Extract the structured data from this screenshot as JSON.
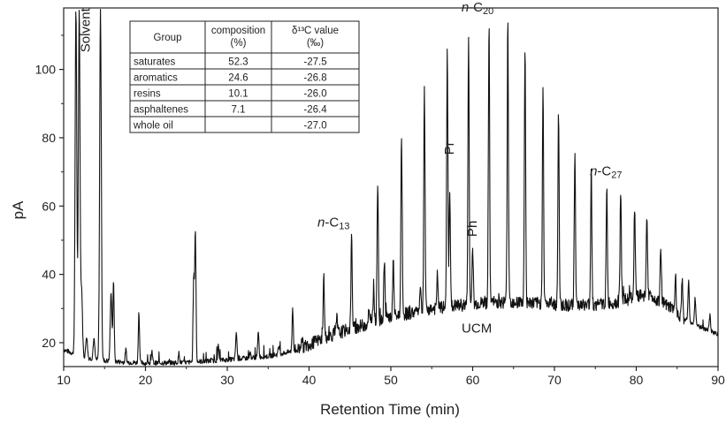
{
  "chart_data": {
    "type": "line",
    "xlabel": "Retention Time (min)",
    "ylabel": "pA",
    "xlim": [
      10,
      90
    ],
    "ylim": [
      13,
      118
    ],
    "x_ticks": [
      "10",
      "20",
      "30",
      "40",
      "50",
      "60",
      "70",
      "80",
      "90"
    ],
    "y_ticks": [
      "20",
      "40",
      "60",
      "80",
      "100"
    ],
    "grid": false,
    "baseline_points": [
      [
        10,
        18
      ],
      [
        12,
        16
      ],
      [
        14,
        15
      ],
      [
        16,
        14.5
      ],
      [
        20,
        14
      ],
      [
        25,
        14.2
      ],
      [
        30,
        15
      ],
      [
        35,
        16
      ],
      [
        38,
        17.5
      ],
      [
        40,
        19.5
      ],
      [
        42,
        21.5
      ],
      [
        45,
        24
      ],
      [
        48,
        26
      ],
      [
        50,
        27.5
      ],
      [
        54,
        29.5
      ],
      [
        58,
        30.8
      ],
      [
        62,
        31.8
      ],
      [
        65,
        32
      ],
      [
        68,
        31.5
      ],
      [
        72,
        31
      ],
      [
        75,
        31
      ],
      [
        78,
        32
      ],
      [
        80,
        33.5
      ],
      [
        81.5,
        34
      ],
      [
        83,
        32
      ],
      [
        85,
        28.5
      ],
      [
        87,
        25.5
      ],
      [
        89,
        23.5
      ],
      [
        90,
        22.5
      ]
    ],
    "peaks": [
      [
        11.5,
        118
      ],
      [
        11.9,
        118
      ],
      [
        12.2,
        35
      ],
      [
        12.8,
        22
      ],
      [
        13.7,
        21
      ],
      [
        14.5,
        118
      ],
      [
        15.8,
        35
      ],
      [
        16.1,
        38
      ],
      [
        17.6,
        18
      ],
      [
        19.2,
        29
      ],
      [
        20.8,
        17
      ],
      [
        24.1,
        17
      ],
      [
        26.1,
        53
      ],
      [
        25.9,
        39
      ],
      [
        28.9,
        19
      ],
      [
        31.1,
        23
      ],
      [
        32.8,
        17
      ],
      [
        33.8,
        23.5
      ],
      [
        36.3,
        19
      ],
      [
        38.0,
        30.5
      ],
      [
        39.1,
        22
      ],
      [
        41.8,
        39.5
      ],
      [
        43.4,
        27
      ],
      [
        45.2,
        51.5
      ],
      [
        47.3,
        29
      ],
      [
        47.9,
        37
      ],
      [
        48.4,
        67.5
      ],
      [
        49.2,
        44.5
      ],
      [
        50.3,
        43.5
      ],
      [
        51.3,
        82
      ],
      [
        53.6,
        37
      ],
      [
        54.1,
        95
      ],
      [
        55.7,
        40
      ],
      [
        56.9,
        105
      ],
      [
        57.2,
        65
      ],
      [
        59.5,
        109
      ],
      [
        60.0,
        47
      ],
      [
        62.0,
        113
      ],
      [
        64.3,
        115.5
      ],
      [
        66.4,
        106.5
      ],
      [
        68.6,
        93.5
      ],
      [
        70.5,
        87
      ],
      [
        72.5,
        76
      ],
      [
        74.5,
        71
      ],
      [
        76.4,
        65
      ],
      [
        78.1,
        65.5
      ],
      [
        79.8,
        60
      ],
      [
        81.3,
        58
      ],
      [
        83.0,
        47
      ],
      [
        84.8,
        41
      ],
      [
        85.6,
        39
      ],
      [
        86.4,
        38
      ],
      [
        87.2,
        33
      ],
      [
        89.0,
        28
      ]
    ],
    "annotations": [
      {
        "text": "Solvent",
        "x": 13.2,
        "y": 105,
        "rotated": true
      },
      {
        "text": "n-C",
        "sub": "13",
        "x": 43.0,
        "y": 54
      },
      {
        "text": "Pr",
        "x": 57.7,
        "y": 75,
        "rotated": true
      },
      {
        "text": "Ph",
        "x": 60.5,
        "y": 51,
        "rotated": true
      },
      {
        "text": "n-C",
        "sub": "20",
        "x": 60.6,
        "y": 117
      },
      {
        "text": "n-C",
        "sub": "27",
        "x": 76.3,
        "y": 69
      },
      {
        "text": "UCM",
        "x": 60.5,
        "y": 23
      }
    ],
    "table": {
      "headers": [
        "Group",
        "composition",
        "δ¹³C value"
      ],
      "header_units": [
        "",
        "(%)",
        "(‰)"
      ],
      "rows": [
        [
          "saturates",
          "52.3",
          "-27.5"
        ],
        [
          "aromatics",
          "24.6",
          "-26.8"
        ],
        [
          "resins",
          "10.1",
          "-26.0"
        ],
        [
          "asphaltenes",
          "7.1",
          "-26.4"
        ],
        [
          "whole oil",
          "",
          "-27.0"
        ]
      ]
    }
  }
}
